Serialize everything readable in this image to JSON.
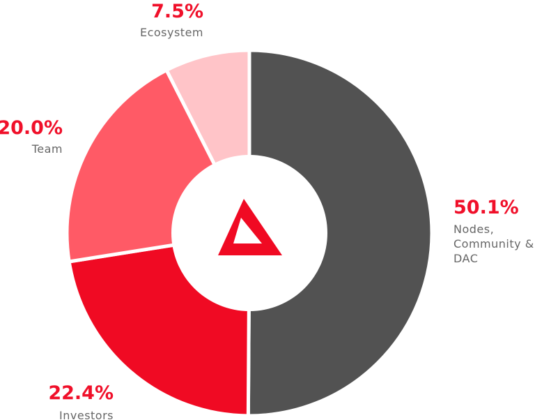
{
  "chart_data": {
    "type": "pie",
    "variant": "donut",
    "slices": [
      {
        "label": [
          "Nodes,",
          "Community &",
          "DAC"
        ],
        "value": 50.1,
        "value_label": "50.1%",
        "color": "#525252"
      },
      {
        "label": [
          "Investors"
        ],
        "value": 22.4,
        "value_label": "22.4%",
        "color": "#f00a23"
      },
      {
        "label": [
          "Team"
        ],
        "value": 20.0,
        "value_label": "20.0%",
        "color": "#ff5a66"
      },
      {
        "label": [
          "Ecosystem"
        ],
        "value": 7.5,
        "value_label": "7.5%",
        "color": "#ffc4c8"
      }
    ],
    "start": "12 o'clock",
    "direction": "clockwise",
    "center_logo": "triangle-logo-icon",
    "accent_color": "#f0102a"
  }
}
